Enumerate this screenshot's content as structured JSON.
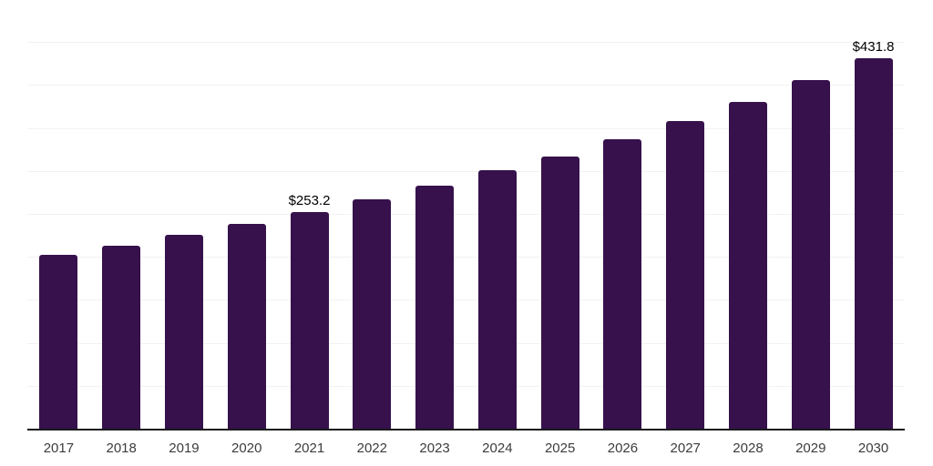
{
  "chart_data": {
    "type": "bar",
    "title": "",
    "xlabel": "",
    "ylabel": "",
    "categories": [
      "2017",
      "2018",
      "2019",
      "2020",
      "2021",
      "2022",
      "2023",
      "2024",
      "2025",
      "2026",
      "2027",
      "2028",
      "2029",
      "2030"
    ],
    "values": [
      203.0,
      214.0,
      226.2,
      239.3,
      253.2,
      268.0,
      283.5,
      301.4,
      318.3,
      337.9,
      359.6,
      381.4,
      406.3,
      431.8
    ],
    "data_labels": {
      "2021": "$253.2",
      "2030": "$431.8"
    },
    "ylim": [
      0,
      500
    ],
    "gridline_step": 50,
    "grid": true,
    "legend_position": "none",
    "colors": {
      "bar": "#36114c",
      "gridline": "#f2f2f2",
      "axis_line": "#1a1a1a",
      "tick_label": "#3c3c3c",
      "data_label": "#000000",
      "background": "#ffffff"
    }
  }
}
